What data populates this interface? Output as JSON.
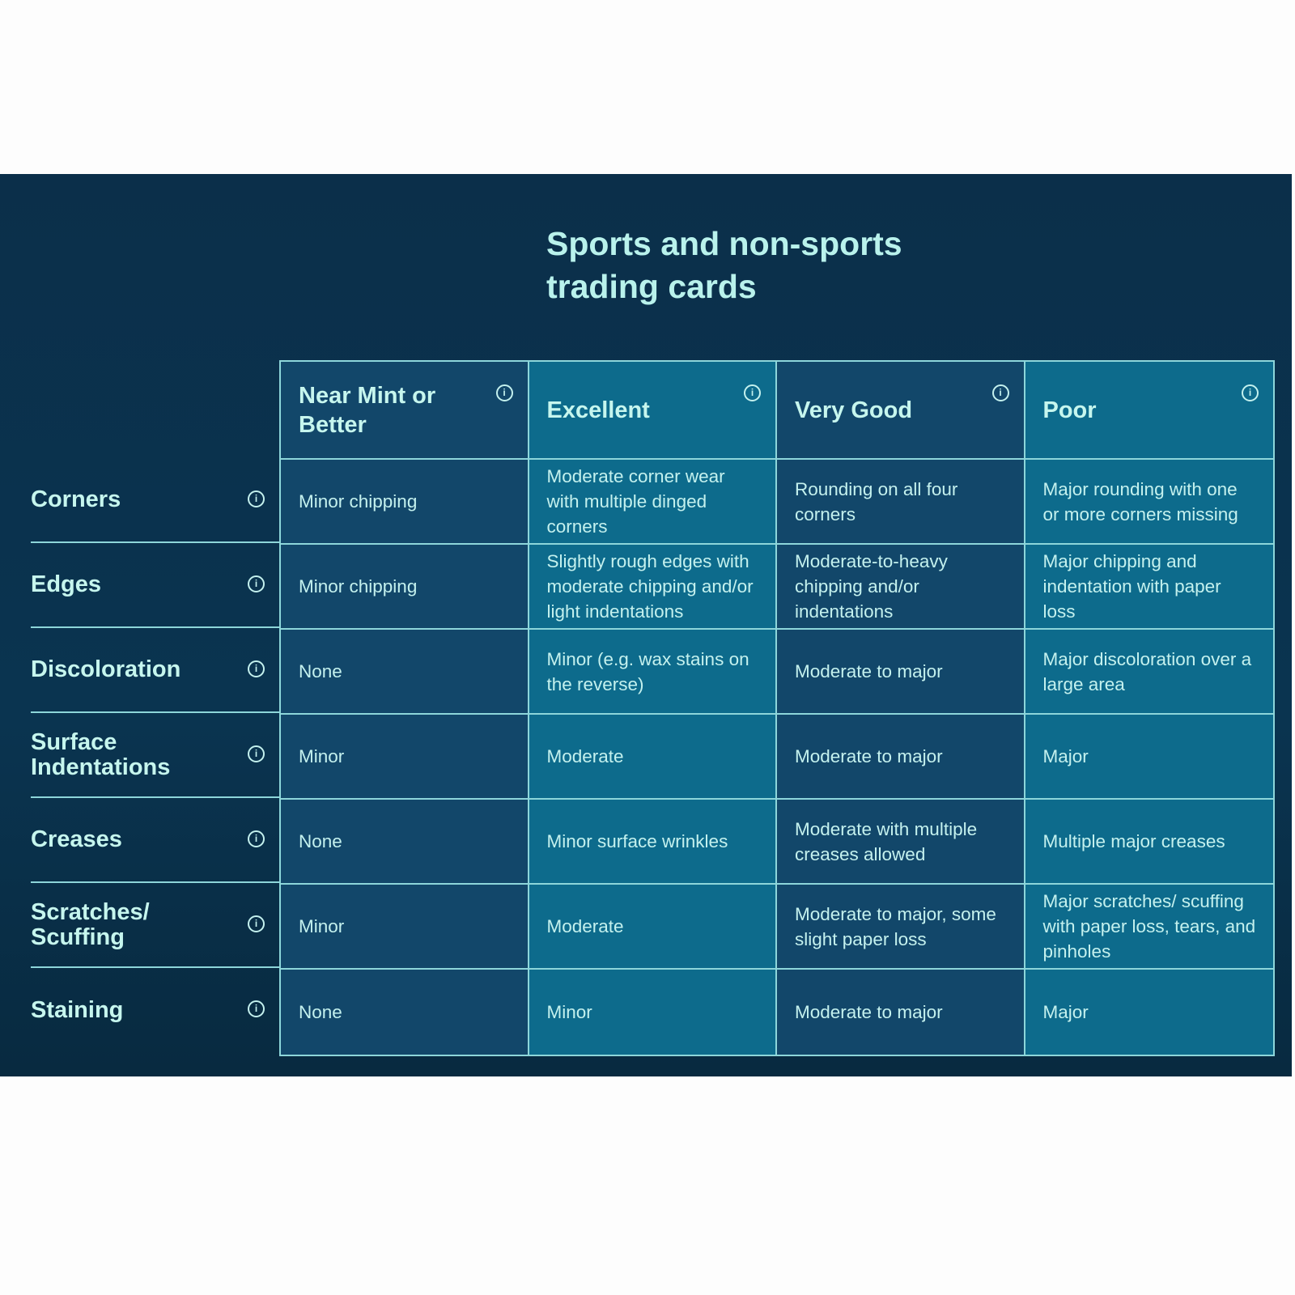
{
  "title": "Sports and non-sports trading cards",
  "columns": [
    "Near Mint or Better",
    "Excellent",
    "Very Good",
    "Poor"
  ],
  "rows": [
    {
      "label": "Corners",
      "cells": [
        "Minor chipping",
        "Moderate corner wear with multiple dinged corners",
        "Rounding on all four corners",
        "Major rounding with one or more corners missing"
      ]
    },
    {
      "label": "Edges",
      "cells": [
        "Minor chipping",
        "Slightly rough edges with moderate chipping and/or light indentations",
        "Moderate-to-heavy chipping and/or indentations",
        "Major chipping and indentation with paper loss"
      ]
    },
    {
      "label": "Discoloration",
      "cells": [
        "None",
        "Minor (e.g. wax stains on the reverse)",
        "Moderate to major",
        "Major discoloration over a large area"
      ]
    },
    {
      "label": "Surface Indentations",
      "cells": [
        "Minor",
        "Moderate",
        "Moderate to major",
        "Major"
      ]
    },
    {
      "label": "Creases",
      "cells": [
        "None",
        "Minor surface wrinkles",
        "Moderate with multiple creases allowed",
        "Multiple major creases"
      ]
    },
    {
      "label": "Scratches/ Scuffing",
      "cells": [
        "Minor",
        "Moderate",
        "Moderate to major, some slight paper loss",
        "Major scratches/ scuffing with paper loss, tears, and pinholes"
      ]
    },
    {
      "label": "Staining",
      "cells": [
        "None",
        "Minor",
        "Moderate to major",
        "Major"
      ]
    }
  ],
  "icons": {
    "info": "info-circle-icon",
    "info_glyph": "i"
  },
  "colors": {
    "panel": "#0b2f4a",
    "column_dark": "#12476a",
    "column_light": "#0d6b8c",
    "text": "#c4f1ee",
    "border": "#8dd6da"
  }
}
